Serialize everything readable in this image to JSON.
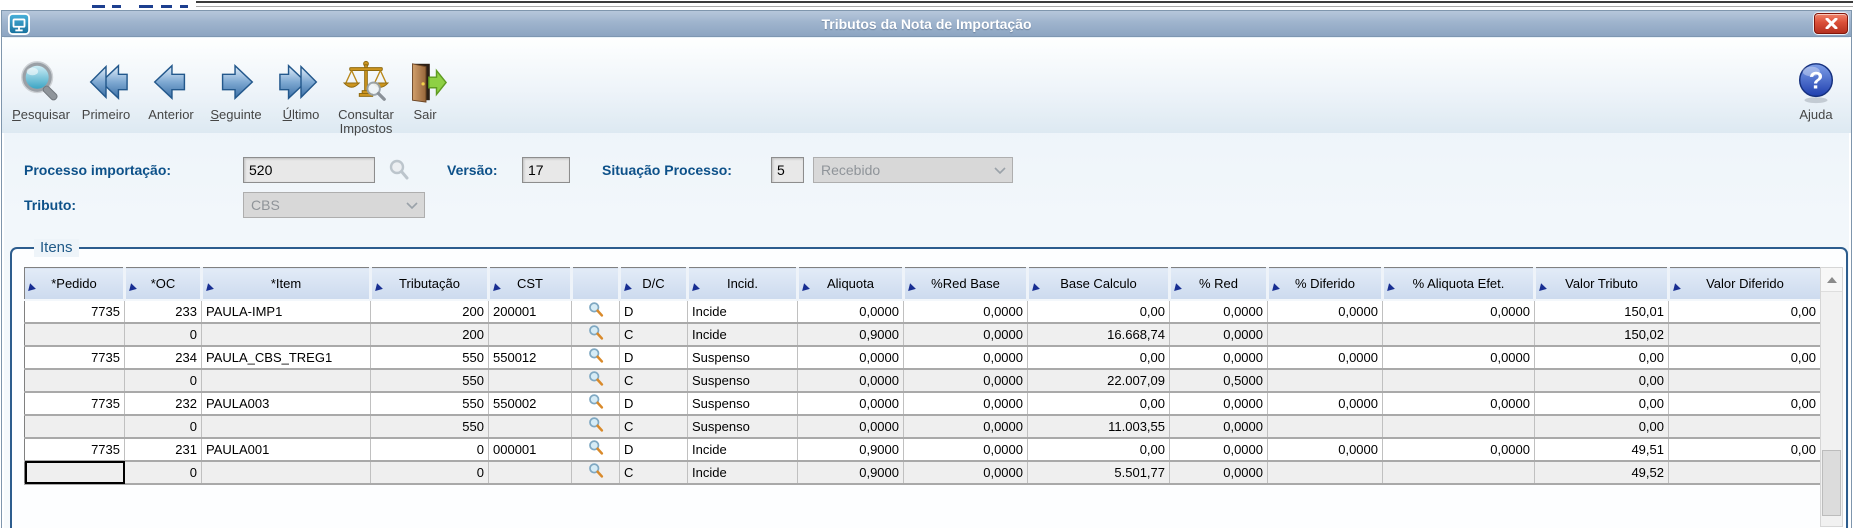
{
  "window": {
    "title": "Tributos da Nota de Importação"
  },
  "toolbar": {
    "buttons": [
      {
        "hotkey": "P",
        "rest": "esquisar",
        "icon": "search-icon"
      },
      {
        "hotkey": "",
        "rest": "Primeiro",
        "icon": "first-icon"
      },
      {
        "hotkey": "",
        "rest": "Anterior",
        "icon": "previous-icon"
      },
      {
        "hotkey": "S",
        "rest": "eguinte",
        "icon": "next-icon"
      },
      {
        "hotkey": "Ú",
        "rest": "ltimo",
        "icon": "last-icon"
      },
      {
        "line1": "Consultar",
        "line2": "Impostos",
        "icon": "consult-taxes-icon"
      },
      {
        "hotkey": "",
        "rest": "Sair",
        "icon": "exit-icon"
      }
    ],
    "help_label": "Ajuda"
  },
  "form": {
    "processo_label": "Processo importação:",
    "processo_value": "520",
    "versao_label": "Versão:",
    "versao_value": "17",
    "situacao_label": "Situação Processo:",
    "situacao_code": "5",
    "situacao_text": "Recebido",
    "tributo_label": "Tributo:",
    "tributo_value": "CBS"
  },
  "itens": {
    "legend": "Itens",
    "columns": [
      "*Pedido",
      "*OC",
      "*Item",
      "Tributação",
      "CST",
      "",
      "D/C",
      "Incid.",
      "Aliquota",
      "%Red Base",
      "Base Calculo",
      "% Red",
      "% Diferido",
      "% Aliquota Efet.",
      "Valor Tributo",
      "Valor Diferido"
    ],
    "lookup_icon": "magnifier-icon",
    "lookup_column_index": 5,
    "focused_cell": {
      "row_index": 7,
      "col_index": 0
    },
    "rows": [
      [
        "7735",
        "233",
        "PAULA-IMP1",
        "200",
        "200001",
        "",
        "D",
        "Incide",
        "0,0000",
        "0,0000",
        "0,00",
        "0,0000",
        "0,0000",
        "0,0000",
        "150,01",
        "0,00"
      ],
      [
        "",
        "0",
        "",
        "200",
        "",
        "",
        "C",
        "Incide",
        "0,9000",
        "0,0000",
        "16.668,74",
        "0,0000",
        "",
        "",
        "150,02",
        ""
      ],
      [
        "7735",
        "234",
        "PAULA_CBS_TREG1",
        "550",
        "550012",
        "",
        "D",
        "Suspenso",
        "0,0000",
        "0,0000",
        "0,00",
        "0,0000",
        "0,0000",
        "0,0000",
        "0,00",
        "0,00"
      ],
      [
        "",
        "0",
        "",
        "550",
        "",
        "",
        "C",
        "Suspenso",
        "0,0000",
        "0,0000",
        "22.007,09",
        "0,5000",
        "",
        "",
        "0,00",
        ""
      ],
      [
        "7735",
        "232",
        "PAULA003",
        "550",
        "550002",
        "",
        "D",
        "Suspenso",
        "0,0000",
        "0,0000",
        "0,00",
        "0,0000",
        "0,0000",
        "0,0000",
        "0,00",
        "0,00"
      ],
      [
        "",
        "0",
        "",
        "550",
        "",
        "",
        "C",
        "Suspenso",
        "0,0000",
        "0,0000",
        "11.003,55",
        "0,0000",
        "",
        "",
        "0,00",
        ""
      ],
      [
        "7735",
        "231",
        "PAULA001",
        "0",
        "000001",
        "",
        "D",
        "Incide",
        "0,9000",
        "0,0000",
        "0,00",
        "0,0000",
        "0,0000",
        "0,0000",
        "49,51",
        "0,00"
      ],
      [
        "",
        "0",
        "",
        "0",
        "",
        "",
        "C",
        "Incide",
        "0,9000",
        "0,0000",
        "5.501,77",
        "0,0000",
        "",
        "",
        "49,52",
        ""
      ]
    ]
  },
  "colors": {
    "accent_blue": "#0d5189",
    "titlebar": "#9fb4cd",
    "header_bg": "#ccdaee",
    "close_red": "#da4f38"
  }
}
